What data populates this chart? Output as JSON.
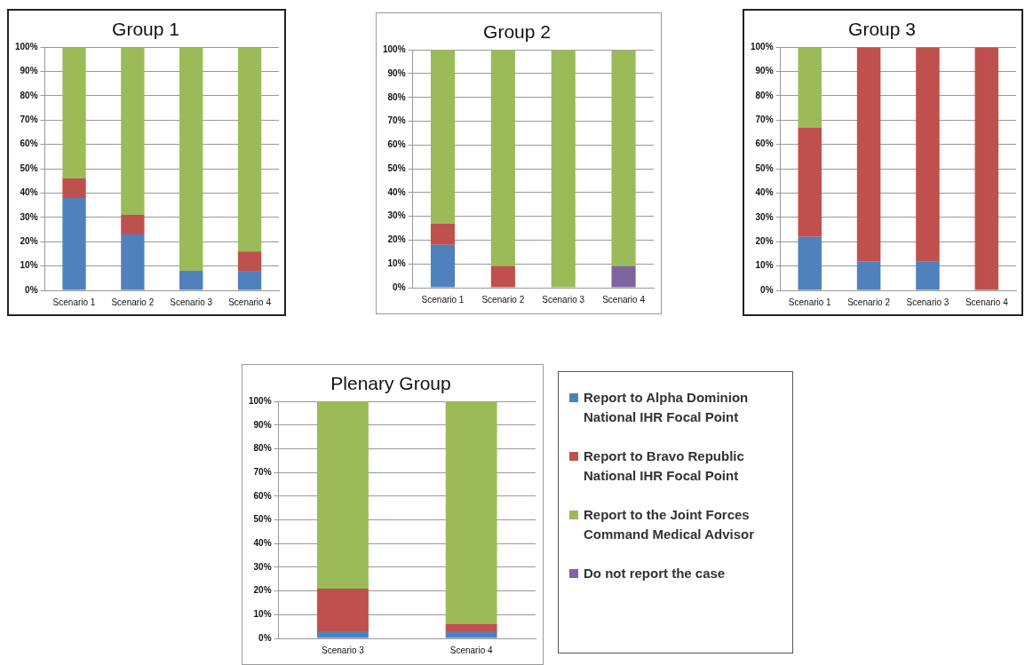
{
  "chart_data": [
    {
      "type": "bar",
      "title": "Group 1",
      "categories": [
        "Scenario 1",
        "Scenario 2",
        "Scenario 3",
        "Scenario 4"
      ],
      "stacked": true,
      "grid": "y",
      "legend": false,
      "ylim": [
        0,
        100
      ],
      "yticks": [
        {
          "value": 0,
          "label": "0%"
        },
        {
          "value": 10,
          "label": "10%"
        },
        {
          "value": 20,
          "label": "20%"
        },
        {
          "value": 30,
          "label": "30%"
        },
        {
          "value": 40,
          "label": "40%"
        },
        {
          "value": 50,
          "label": "50%"
        },
        {
          "value": 60,
          "label": "60%"
        },
        {
          "value": 70,
          "label": "70%"
        },
        {
          "value": 80,
          "label": "80%"
        },
        {
          "value": 90,
          "label": "90%"
        },
        {
          "value": 100,
          "label": "100%"
        }
      ],
      "series": [
        {
          "color": "#4f81bd",
          "values": [
            38,
            23,
            8,
            8
          ]
        },
        {
          "color": "#c0504d",
          "values": [
            8,
            8,
            0,
            8
          ]
        },
        {
          "color": "#9bbb59",
          "values": [
            54,
            69,
            92,
            84
          ]
        }
      ]
    },
    {
      "type": "bar",
      "title": "Group 2",
      "categories": [
        "Scenario 1",
        "Scenario 2",
        "Scenario 3",
        "Scenario 4"
      ],
      "stacked": true,
      "grid": "y",
      "legend": false,
      "ylim": [
        0,
        100
      ],
      "yticks": [
        {
          "value": 0,
          "label": "0%"
        },
        {
          "value": 10,
          "label": "10%"
        },
        {
          "value": 20,
          "label": "20%"
        },
        {
          "value": 30,
          "label": "30%"
        },
        {
          "value": 40,
          "label": "40%"
        },
        {
          "value": 50,
          "label": "50%"
        },
        {
          "value": 60,
          "label": "60%"
        },
        {
          "value": 70,
          "label": "70%"
        },
        {
          "value": 80,
          "label": "80%"
        },
        {
          "value": 90,
          "label": "90%"
        },
        {
          "value": 100,
          "label": "100%"
        }
      ],
      "series": [
        {
          "color": "#4f81bd",
          "values": [
            18,
            0,
            0,
            0
          ]
        },
        {
          "color": "#c0504d",
          "values": [
            9,
            9,
            0,
            0
          ]
        },
        {
          "color": "#8064a2",
          "values": [
            0,
            0,
            0,
            9
          ]
        },
        {
          "color": "#9bbb59",
          "values": [
            73,
            91,
            100,
            91
          ]
        }
      ]
    },
    {
      "type": "bar",
      "title": "Group 3",
      "categories": [
        "Scenario 1",
        "Scenario 2",
        "Scenario 3",
        "Scenario 4"
      ],
      "stacked": true,
      "grid": "y",
      "legend": false,
      "ylim": [
        0,
        100
      ],
      "yticks": [
        {
          "value": 0,
          "label": "0%"
        },
        {
          "value": 10,
          "label": "10%"
        },
        {
          "value": 20,
          "label": "20%"
        },
        {
          "value": 30,
          "label": "30%"
        },
        {
          "value": 40,
          "label": "40%"
        },
        {
          "value": 50,
          "label": "50%"
        },
        {
          "value": 60,
          "label": "60%"
        },
        {
          "value": 70,
          "label": "70%"
        },
        {
          "value": 80,
          "label": "80%"
        },
        {
          "value": 90,
          "label": "90%"
        },
        {
          "value": 100,
          "label": "100%"
        }
      ],
      "series": [
        {
          "color": "#4f81bd",
          "values": [
            22,
            12,
            12,
            0
          ]
        },
        {
          "color": "#c0504d",
          "values": [
            45,
            88,
            88,
            100
          ]
        },
        {
          "color": "#9bbb59",
          "values": [
            33,
            0,
            0,
            0
          ]
        }
      ]
    },
    {
      "type": "bar",
      "title": "Plenary Group",
      "categories": [
        "Scenario 3",
        "Scenario 4"
      ],
      "stacked": true,
      "grid": "y",
      "legend": "right",
      "ylim": [
        0,
        100
      ],
      "yticks": [
        {
          "value": 0,
          "label": "0%"
        },
        {
          "value": 10,
          "label": "10%"
        },
        {
          "value": 20,
          "label": "20%"
        },
        {
          "value": 30,
          "label": "30%"
        },
        {
          "value": 40,
          "label": "40%"
        },
        {
          "value": 50,
          "label": "50%"
        },
        {
          "value": 60,
          "label": "60%"
        },
        {
          "value": 70,
          "label": "70%"
        },
        {
          "value": 80,
          "label": "80%"
        },
        {
          "value": 90,
          "label": "90%"
        },
        {
          "value": 100,
          "label": "100%"
        }
      ],
      "series": [
        {
          "name": "Report to Alpha Dominion National IHR Focal Point",
          "color": "#4f81bd",
          "values": [
            3,
            3
          ]
        },
        {
          "name": "Report to Bravo Republic National IHR Focal Point",
          "color": "#c0504d",
          "values": [
            18,
            3
          ]
        },
        {
          "name": "Report to the Joint Forces Command Medical Advisor",
          "color": "#9bbb59",
          "values": [
            79,
            94
          ]
        },
        {
          "name": "Do not report the case",
          "color": "#8064a2",
          "values": [
            0,
            0
          ]
        }
      ]
    }
  ]
}
